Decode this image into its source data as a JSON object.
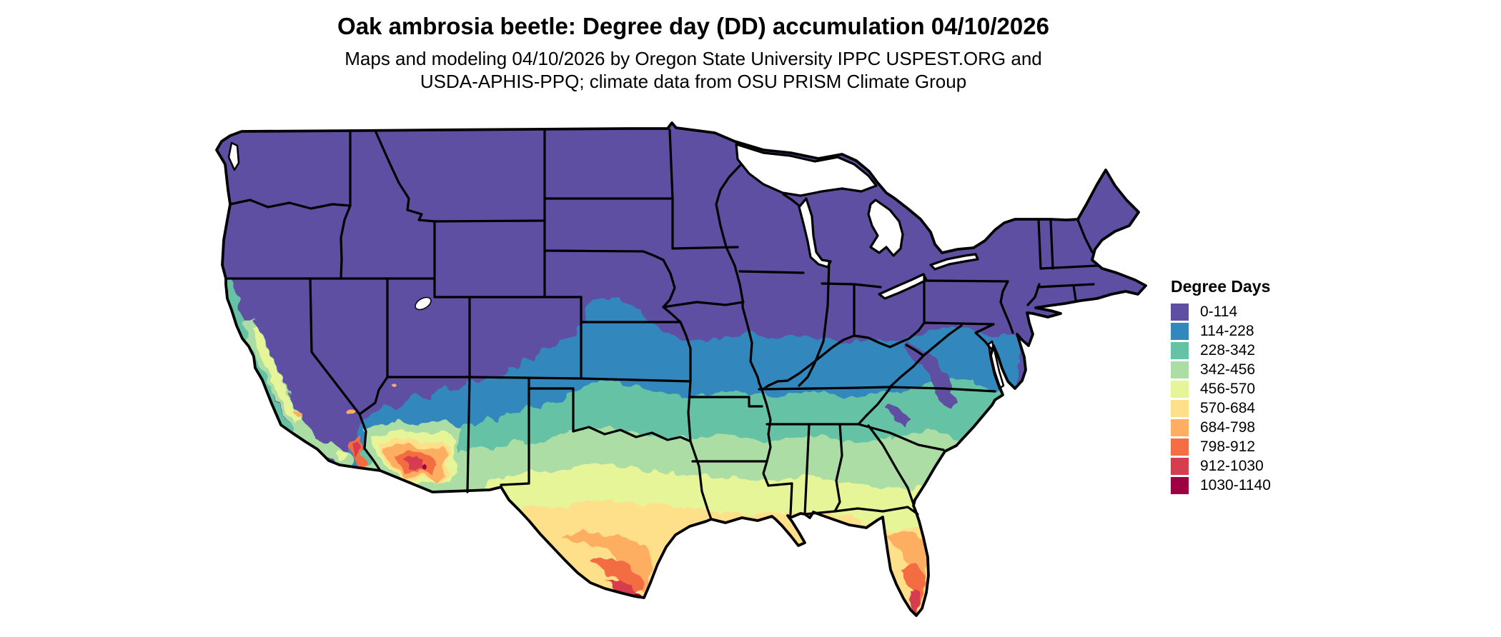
{
  "header": {
    "title": "Oak ambrosia beetle: Degree day (DD) accumulation 04/10/2026",
    "subtitle_line1": "Maps and modeling 04/10/2026 by Oregon State University IPPC USPEST.ORG and",
    "subtitle_line2": "USDA-APHIS-PPQ; climate data from OSU PRISM Climate Group"
  },
  "legend": {
    "title": "Degree Days",
    "items": [
      {
        "label": "0-114",
        "color": "#5e4fa2"
      },
      {
        "label": "114-228",
        "color": "#3288bd"
      },
      {
        "label": "228-342",
        "color": "#66c2a5"
      },
      {
        "label": "342-456",
        "color": "#abdda4"
      },
      {
        "label": "456-570",
        "color": "#e6f598"
      },
      {
        "label": "570-684",
        "color": "#fee08b"
      },
      {
        "label": "684-798",
        "color": "#fdae61"
      },
      {
        "label": "798-912",
        "color": "#f46d43"
      },
      {
        "label": "912-1030",
        "color": "#d53e4f"
      },
      {
        "label": "1030-1140",
        "color": "#9e0142"
      }
    ]
  },
  "chart_data": {
    "type": "heatmap",
    "title": "Oak ambrosia beetle: Degree day (DD) accumulation 04/10/2026",
    "region": "Contiguous United States",
    "legend_title": "Degree Days",
    "bins": [
      [
        0,
        114
      ],
      [
        114,
        228
      ],
      [
        228,
        342
      ],
      [
        342,
        456
      ],
      [
        456,
        570
      ],
      [
        570,
        684
      ],
      [
        684,
        798
      ],
      [
        798,
        912
      ],
      [
        912,
        1030
      ],
      [
        1030,
        1140
      ]
    ],
    "bin_colors": [
      "#5e4fa2",
      "#3288bd",
      "#66c2a5",
      "#abdda4",
      "#e6f598",
      "#fee08b",
      "#fdae61",
      "#f46d43",
      "#d53e4f",
      "#9e0142"
    ],
    "pattern": "low accumulation (0-114) across northern states and Rockies; increasing southward; highest values (912-1140) in far south Texas, south Florida / Keys, and southwest Arizona desert"
  }
}
